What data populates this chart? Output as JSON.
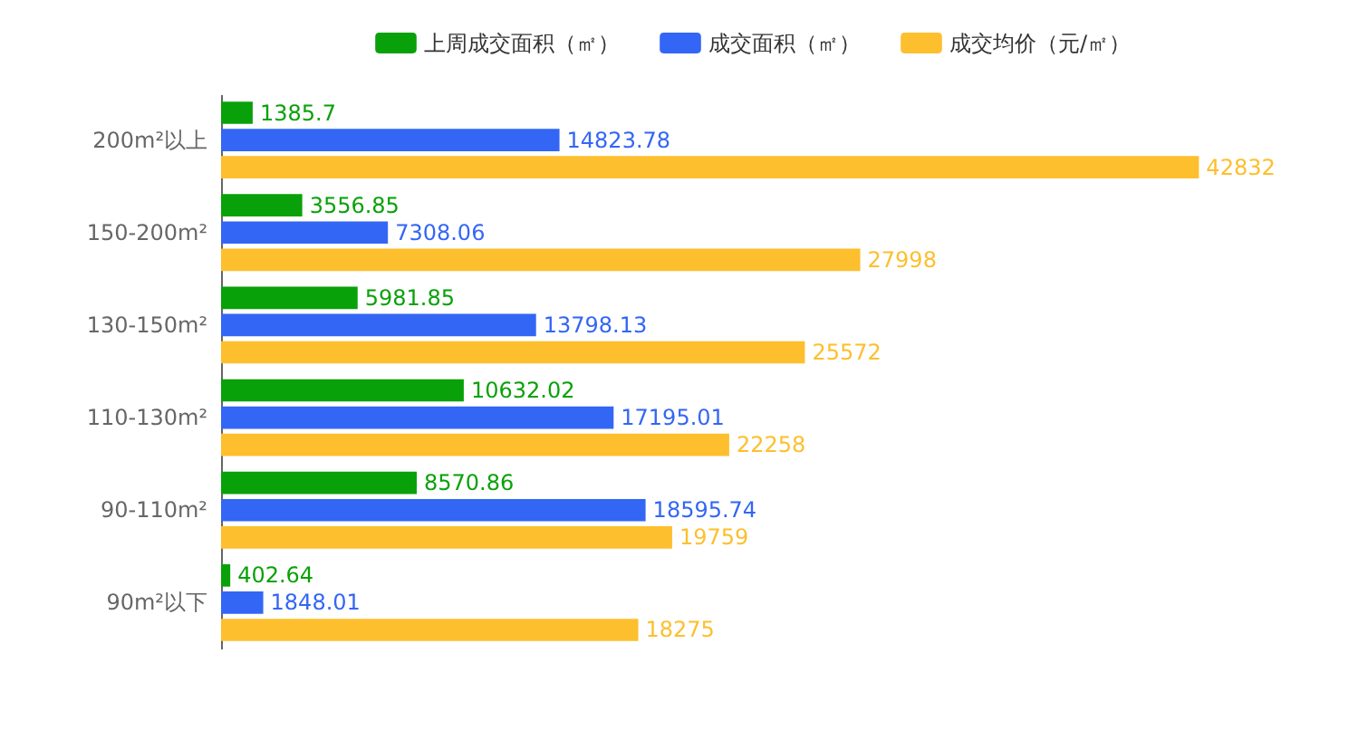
{
  "chart_data": {
    "type": "bar",
    "orientation": "horizontal",
    "legend": "top",
    "data_labels": true,
    "categories": [
      "200m²以上",
      "150-200m²",
      "130-150m²",
      "110-130m²",
      "90-110m²",
      "90m²以下"
    ],
    "series": [
      {
        "name": "上周成交面积（㎡）",
        "color": "#09a109",
        "values": [
          1385.7,
          3556.85,
          5981.85,
          10632.02,
          8570.86,
          402.64
        ]
      },
      {
        "name": "成交面积（㎡）",
        "color": "#3366f5",
        "values": [
          14823.78,
          7308.06,
          13798.13,
          17195.01,
          18595.74,
          1848.01
        ]
      },
      {
        "name": "成交均价（元/㎡）",
        "color": "#fdbf2d",
        "values": [
          42832,
          27998,
          25572,
          22258,
          19759,
          18275
        ]
      }
    ]
  }
}
